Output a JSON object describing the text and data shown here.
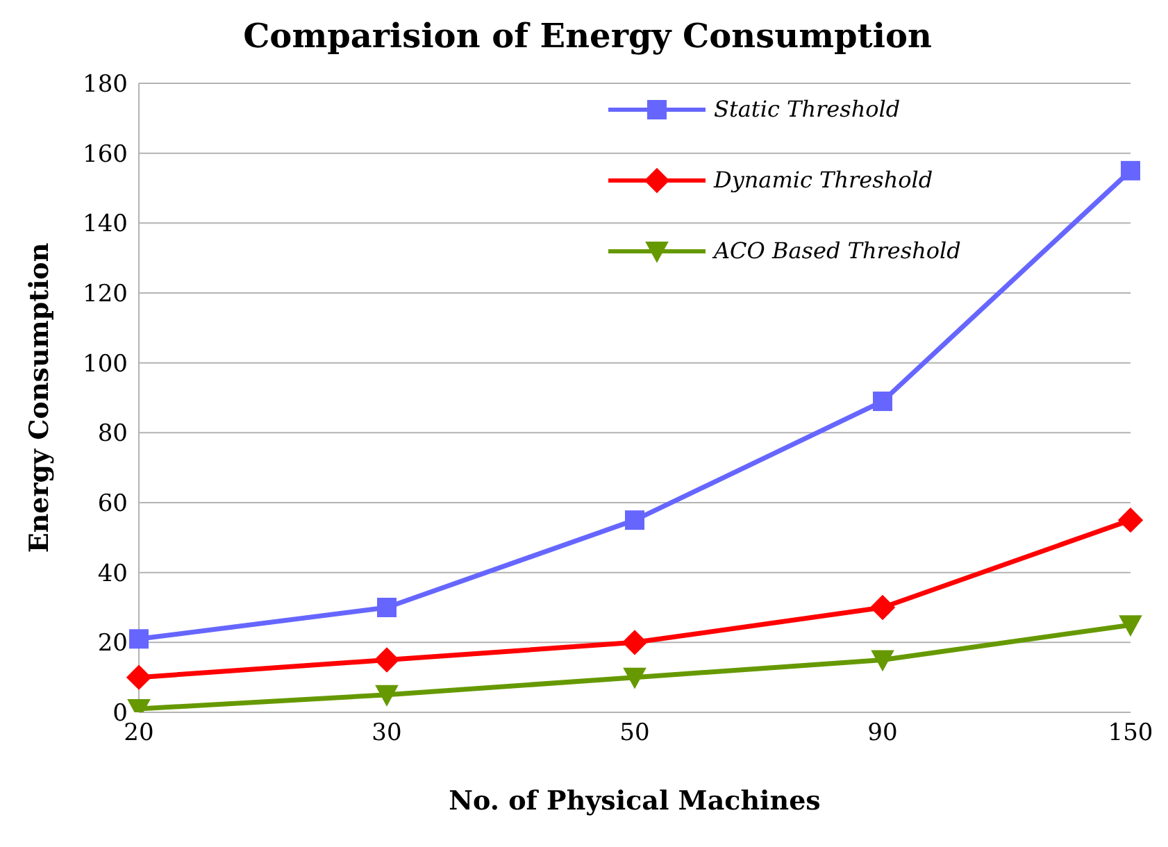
{
  "chart_data": {
    "type": "line",
    "title": "Comparision of Energy Consumption",
    "xlabel": "No. of Physical Machines",
    "ylabel": "Energy Consumption",
    "categories": [
      "20",
      "30",
      "50",
      "90",
      "150"
    ],
    "series": [
      {
        "name": "Static Threshold",
        "color": "#6666ff",
        "marker": "square",
        "values": [
          21,
          30,
          55,
          89,
          155
        ]
      },
      {
        "name": "Dynamic Threshold",
        "color": "#ff0000",
        "marker": "diamond",
        "values": [
          10,
          15,
          20,
          30,
          55
        ]
      },
      {
        "name": "ACO Based Threshold",
        "color": "#669900",
        "marker": "triangle",
        "values": [
          1,
          5,
          10,
          15,
          25
        ]
      }
    ],
    "ylim": [
      0,
      180
    ],
    "yticks": [
      0,
      20,
      40,
      60,
      80,
      100,
      120,
      140,
      160,
      180
    ],
    "grid": "y",
    "legend": "top right",
    "line_style": "solid"
  }
}
